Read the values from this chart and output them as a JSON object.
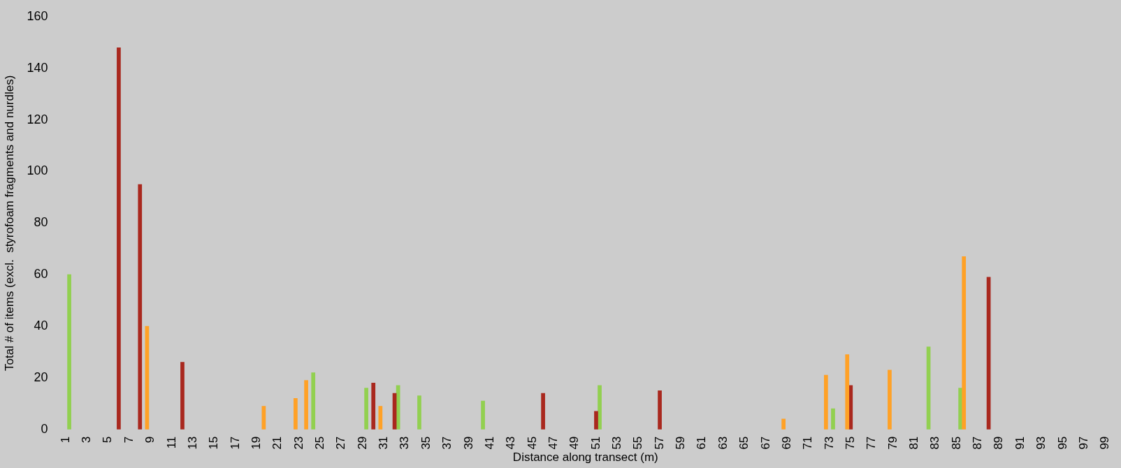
{
  "chart_data": {
    "type": "bar",
    "xlabel": "Distance along transect (m)",
    "ylabel": "Total # of items (excl.  styrofoam fragments and nurdles)",
    "categories": [
      "1",
      null,
      "3",
      null,
      "5",
      null,
      "7",
      null,
      "9",
      null,
      "11",
      null,
      "13",
      null,
      "15",
      null,
      "17",
      null,
      "19",
      null,
      "21",
      null,
      "23",
      null,
      "25",
      null,
      "27",
      null,
      "29",
      null,
      "31",
      null,
      "33",
      null,
      "35",
      null,
      "37",
      null,
      "39",
      null,
      "41",
      null,
      "43",
      null,
      "45",
      null,
      "47",
      null,
      "49",
      null,
      "51",
      null,
      "53",
      null,
      "55",
      null,
      "57",
      null,
      "59",
      null,
      "61",
      null,
      "63",
      null,
      "65",
      null,
      "67",
      null,
      "69",
      null,
      "71",
      null,
      "73",
      null,
      "75",
      null,
      "77",
      null,
      "79",
      null,
      "81",
      null,
      "83",
      null,
      "85",
      null,
      "87",
      null,
      "89",
      null,
      "91",
      null,
      "93",
      null,
      "95",
      null,
      "97",
      null,
      "99"
    ],
    "series": [
      {
        "color": "#ffa126",
        "values": [
          null,
          null,
          null,
          null,
          null,
          null,
          null,
          null,
          40,
          null,
          null,
          null,
          null,
          null,
          null,
          null,
          null,
          null,
          null,
          9,
          null,
          null,
          12,
          19,
          null,
          null,
          null,
          null,
          null,
          null,
          9,
          null,
          null,
          null,
          null,
          null,
          null,
          null,
          null,
          null,
          null,
          null,
          null,
          null,
          null,
          null,
          null,
          null,
          null,
          null,
          null,
          null,
          null,
          null,
          null,
          null,
          null,
          null,
          null,
          null,
          null,
          null,
          null,
          null,
          null,
          null,
          null,
          null,
          4,
          null,
          null,
          null,
          21,
          null,
          29,
          null,
          null,
          null,
          23,
          null,
          null,
          null,
          null,
          null,
          null,
          67,
          null,
          null,
          null,
          null,
          null,
          null,
          null,
          null,
          null,
          null,
          null,
          null,
          null
        ]
      },
      {
        "color": "#a9281e",
        "values": [
          null,
          null,
          null,
          null,
          null,
          148,
          null,
          95,
          null,
          null,
          null,
          26,
          null,
          null,
          null,
          null,
          null,
          null,
          null,
          null,
          null,
          null,
          null,
          null,
          null,
          null,
          null,
          null,
          null,
          18,
          null,
          14,
          null,
          null,
          null,
          null,
          null,
          null,
          null,
          null,
          null,
          null,
          null,
          null,
          null,
          14,
          null,
          null,
          null,
          null,
          7,
          null,
          null,
          null,
          null,
          null,
          15,
          null,
          null,
          null,
          null,
          null,
          null,
          null,
          null,
          null,
          null,
          null,
          null,
          null,
          null,
          null,
          null,
          null,
          17,
          null,
          null,
          null,
          null,
          null,
          null,
          null,
          null,
          null,
          null,
          null,
          null,
          59,
          null,
          null,
          null,
          null,
          null,
          null,
          null,
          null,
          null,
          null,
          null
        ]
      },
      {
        "color": "#92d050",
        "values": [
          60,
          null,
          null,
          null,
          null,
          null,
          null,
          null,
          null,
          null,
          null,
          null,
          null,
          null,
          null,
          null,
          null,
          null,
          null,
          null,
          null,
          null,
          null,
          22,
          null,
          null,
          null,
          null,
          16,
          null,
          null,
          17,
          null,
          13,
          null,
          null,
          null,
          null,
          null,
          11,
          null,
          null,
          null,
          null,
          null,
          null,
          null,
          null,
          null,
          null,
          17,
          null,
          null,
          null,
          null,
          null,
          null,
          null,
          null,
          null,
          null,
          null,
          null,
          null,
          null,
          null,
          null,
          null,
          null,
          null,
          null,
          null,
          8,
          null,
          null,
          null,
          null,
          null,
          null,
          null,
          null,
          32,
          null,
          null,
          16,
          null,
          null,
          null,
          null,
          null,
          null,
          null,
          null,
          null,
          null,
          null,
          null,
          null,
          null
        ]
      }
    ],
    "ylim": [
      0,
      160
    ],
    "yticks": [
      0,
      20,
      40,
      60,
      80,
      100,
      120,
      140,
      160
    ],
    "grid": false,
    "legend": false
  }
}
